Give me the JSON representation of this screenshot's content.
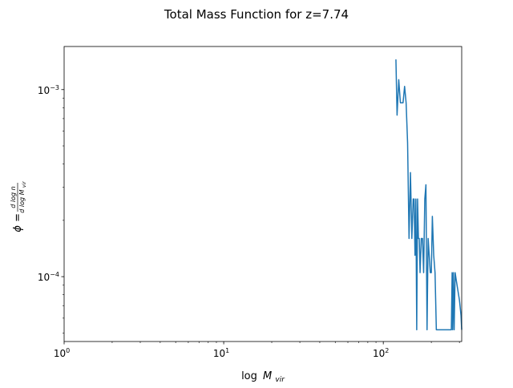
{
  "figure": {
    "title": "Total Mass Function for z=7.74",
    "xlabel_main": "log",
    "xlabel_var": "M",
    "xlabel_sub": "vir",
    "ylabel_lhs": "ϕ =",
    "ylabel_num": "d log n",
    "ylabel_den": "d log M",
    "ylabel_den_sub": "vir"
  },
  "chart_data": {
    "type": "line",
    "title": "Total Mass Function for z=7.74",
    "xlabel": "log M_vir",
    "ylabel": "ϕ = dlog n / dlog M_vir",
    "xscale": "log",
    "yscale": "log",
    "xlim": [
      1,
      310
    ],
    "ylim": [
      4.5e-05,
      0.0017
    ],
    "grid": false,
    "line_color": "#1f77b4",
    "x_ticks": [
      {
        "value": 1,
        "base": "10",
        "exp": "0"
      },
      {
        "value": 10,
        "base": "10",
        "exp": "1"
      },
      {
        "value": 100,
        "base": "10",
        "exp": "2"
      }
    ],
    "y_ticks": [
      {
        "value": 0.001,
        "base": "10",
        "exp": "−3"
      },
      {
        "value": 0.0001,
        "base": "10",
        "exp": "−4"
      }
    ],
    "series": [
      {
        "x": [
          120,
          122,
          125,
          128,
          131,
          133,
          136,
          139,
          142,
          145,
          148,
          151,
          154,
          156,
          158,
          160,
          162,
          164,
          166,
          168,
          170,
          173,
          176,
          179,
          182,
          185,
          188,
          191,
          194,
          197,
          200,
          203,
          207,
          211,
          215,
          220,
          225,
          232,
          239,
          246,
          253,
          260,
          265,
          267,
          270,
          272,
          275,
          278,
          282,
          287,
          293,
          300,
          307,
          310
        ],
        "y": [
          0.00145,
          0.00073,
          0.00113,
          0.00085,
          0.00085,
          0.00085,
          0.00104,
          0.00085,
          0.00052,
          0.00016,
          0.00036,
          0.00016,
          0.00026,
          0.00026,
          0.00013,
          0.00026,
          5.2e-05,
          0.00026,
          0.00016,
          0.00016,
          0.000105,
          0.00016,
          0.00016,
          0.000105,
          0.00026,
          0.00031,
          5.2e-05,
          0.00016,
          0.00013,
          0.000105,
          0.000105,
          0.00021,
          0.00013,
          0.000105,
          5.2e-05,
          5.2e-05,
          5.2e-05,
          5.2e-05,
          5.2e-05,
          5.2e-05,
          5.2e-05,
          5.2e-05,
          5.2e-05,
          5.2e-05,
          0.000105,
          5.2e-05,
          0.000105,
          5.2e-05,
          0.000105,
          9.5e-05,
          8.5e-05,
          7.5e-05,
          6.2e-05,
          5.2e-05
        ]
      }
    ]
  }
}
